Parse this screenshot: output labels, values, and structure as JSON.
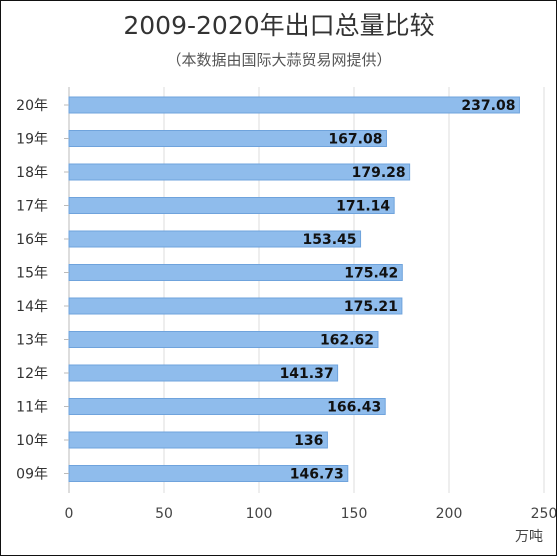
{
  "chart_data": {
    "type": "bar",
    "orientation": "horizontal",
    "title": "2009-2020年出口总量比较",
    "subtitle": "（本数据由国际大蒜贸易网提供）",
    "xlabel": "万吨",
    "ylabel": "",
    "xlim": [
      0,
      250
    ],
    "xticks": [
      0,
      50,
      100,
      150,
      200,
      250
    ],
    "grid": true,
    "legend": "none",
    "categories": [
      "20年",
      "19年",
      "18年",
      "17年",
      "16年",
      "15年",
      "14年",
      "13年",
      "12年",
      "11年",
      "10年",
      "09年"
    ],
    "values": [
      237.08,
      167.08,
      179.28,
      171.14,
      153.45,
      175.42,
      175.21,
      162.62,
      141.37,
      166.43,
      136,
      146.73
    ],
    "value_labels": [
      "237.08",
      "167.08",
      "179.28",
      "171.14",
      "153.45",
      "175.42",
      "175.21",
      "162.62",
      "141.37",
      "166.43",
      "136",
      "146.73"
    ],
    "colors": {
      "bar_fill": "#8fbcec",
      "bar_stroke": "#6fa3dc"
    }
  }
}
